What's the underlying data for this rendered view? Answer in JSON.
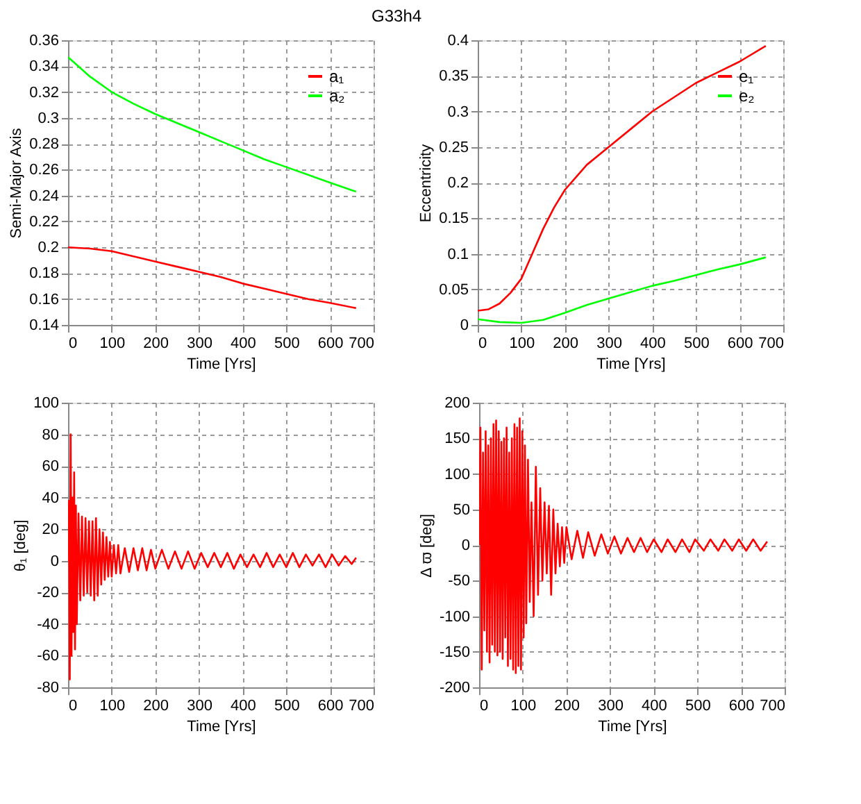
{
  "chart_data": [
    {
      "type": "line",
      "title": "G33h4",
      "xlabel": "Time [Yrs]",
      "ylabel": "Semi-Major Axis",
      "xlim": [
        0,
        700
      ],
      "xticks": [
        0,
        100,
        200,
        300,
        400,
        500,
        600,
        700
      ],
      "ylim": [
        0.14,
        0.36
      ],
      "yticks": [
        0.14,
        0.16,
        0.18,
        0.2,
        0.22,
        0.24,
        0.26,
        0.28,
        0.3,
        0.32,
        0.34,
        0.36
      ],
      "grid": true,
      "legend": "top right",
      "x": [
        0,
        50,
        100,
        150,
        200,
        250,
        300,
        350,
        400,
        450,
        500,
        550,
        600,
        660
      ],
      "series": [
        {
          "name": "a₁",
          "color": "#ff0000",
          "values": [
            0.2,
            0.199,
            0.197,
            0.193,
            0.189,
            0.185,
            0.181,
            0.177,
            0.172,
            0.168,
            0.164,
            0.16,
            0.157,
            0.153
          ]
        },
        {
          "name": "a₂",
          "color": "#00ff00",
          "values": [
            0.347,
            0.332,
            0.32,
            0.311,
            0.303,
            0.296,
            0.289,
            0.282,
            0.275,
            0.268,
            0.262,
            0.256,
            0.25,
            0.243
          ]
        }
      ]
    },
    {
      "type": "line",
      "xlabel": "Time [Yrs]",
      "ylabel": "Eccentricity",
      "xlim": [
        0,
        700
      ],
      "xticks": [
        0,
        100,
        200,
        300,
        400,
        500,
        600,
        700
      ],
      "ylim": [
        0,
        0.4
      ],
      "yticks": [
        0,
        0.05,
        0.1,
        0.15,
        0.2,
        0.25,
        0.3,
        0.35,
        0.4
      ],
      "grid": true,
      "legend": "top right",
      "series": [
        {
          "name": "e₁",
          "color": "#ff0000",
          "x": [
            0,
            25,
            50,
            75,
            100,
            125,
            150,
            175,
            200,
            250,
            300,
            350,
            400,
            450,
            500,
            550,
            600,
            660
          ],
          "values": [
            0.02,
            0.022,
            0.03,
            0.045,
            0.065,
            0.1,
            0.135,
            0.165,
            0.19,
            0.225,
            0.25,
            0.275,
            0.3,
            0.32,
            0.34,
            0.355,
            0.37,
            0.392
          ]
        },
        {
          "name": "e₂",
          "color": "#00ff00",
          "x": [
            0,
            50,
            100,
            150,
            200,
            250,
            300,
            350,
            400,
            450,
            500,
            550,
            600,
            660
          ],
          "values": [
            0.008,
            0.004,
            0.003,
            0.007,
            0.017,
            0.028,
            0.037,
            0.046,
            0.055,
            0.062,
            0.07,
            0.078,
            0.085,
            0.095
          ]
        }
      ]
    },
    {
      "type": "line",
      "xlabel": "Time [Yrs]",
      "ylabel": "θ₁   [deg]",
      "xlim": [
        0,
        700
      ],
      "xticks": [
        0,
        100,
        200,
        300,
        400,
        500,
        600,
        700
      ],
      "ylim": [
        -80,
        100
      ],
      "yticks": [
        -80,
        -60,
        -40,
        -20,
        0,
        20,
        40,
        60,
        80,
        100
      ],
      "grid": true,
      "series": [
        {
          "color": "#ff0000",
          "x": [
            0,
            2,
            4,
            6,
            8,
            10,
            12,
            14,
            16,
            18,
            20,
            24,
            28,
            32,
            36,
            40,
            44,
            48,
            52,
            56,
            60,
            64,
            68,
            72,
            76,
            80,
            84,
            88,
            92,
            96,
            100,
            105,
            110,
            115,
            120,
            130,
            140,
            150,
            160,
            170,
            180,
            190,
            200,
            215,
            230,
            245,
            260,
            275,
            290,
            305,
            320,
            335,
            350,
            365,
            380,
            395,
            410,
            425,
            440,
            455,
            470,
            485,
            500,
            515,
            530,
            545,
            560,
            575,
            590,
            605,
            620,
            635,
            650,
            660
          ],
          "values": [
            0,
            38,
            -75,
            80,
            -60,
            40,
            -45,
            56,
            -56,
            35,
            -40,
            30,
            -25,
            28,
            -22,
            27,
            -20,
            25,
            -22,
            25,
            -25,
            27,
            -22,
            20,
            -15,
            18,
            -12,
            15,
            -10,
            12,
            -10,
            10,
            -8,
            10,
            -8,
            8,
            -7,
            8,
            -6,
            8,
            -6,
            7,
            -5,
            7,
            -5,
            6,
            -5,
            6,
            -5,
            5,
            -4,
            5,
            -4,
            5,
            -5,
            4,
            -4,
            4,
            -4,
            5,
            -4,
            4,
            -4,
            5,
            -4,
            4,
            -3,
            4,
            -4,
            4,
            -3,
            3,
            -2,
            2
          ]
        }
      ]
    },
    {
      "type": "line",
      "xlabel": "Time [Yrs]",
      "ylabel": "Δ ϖ   [deg]",
      "xlim": [
        0,
        700
      ],
      "xticks": [
        0,
        100,
        200,
        300,
        400,
        500,
        600,
        700
      ],
      "ylim": [
        -200,
        200
      ],
      "yticks": [
        -200,
        -150,
        -100,
        -50,
        0,
        50,
        100,
        150,
        200
      ],
      "grid": true,
      "series": [
        {
          "color": "#ff0000",
          "x": [
            0,
            3,
            6,
            9,
            12,
            15,
            18,
            21,
            24,
            27,
            30,
            33,
            36,
            39,
            42,
            45,
            48,
            51,
            54,
            57,
            60,
            63,
            66,
            69,
            72,
            75,
            78,
            81,
            84,
            87,
            90,
            93,
            96,
            99,
            102,
            105,
            108,
            112,
            116,
            120,
            125,
            130,
            135,
            140,
            145,
            150,
            155,
            160,
            165,
            170,
            175,
            180,
            185,
            190,
            195,
            200,
            212,
            225,
            238,
            250,
            265,
            280,
            295,
            310,
            325,
            340,
            355,
            370,
            385,
            400,
            418,
            432,
            450,
            465,
            482,
            495,
            515,
            530,
            548,
            562,
            580,
            595,
            612,
            628,
            645,
            660
          ],
          "values": [
            0,
            165,
            -175,
            130,
            -120,
            160,
            -150,
            140,
            -165,
            150,
            -140,
            170,
            -150,
            175,
            -155,
            160,
            -150,
            145,
            -160,
            150,
            -130,
            165,
            -170,
            130,
            -160,
            150,
            -175,
            170,
            -180,
            165,
            -170,
            178,
            -175,
            160,
            -130,
            140,
            -110,
            120,
            -80,
            60,
            -100,
            110,
            -70,
            80,
            -50,
            60,
            -40,
            55,
            -70,
            50,
            -40,
            30,
            -30,
            25,
            -25,
            25,
            -20,
            20,
            -18,
            18,
            -15,
            15,
            -12,
            12,
            -12,
            10,
            -10,
            10,
            -10,
            8,
            -10,
            8,
            -10,
            8,
            -10,
            8,
            -8,
            8,
            -8,
            8,
            -8,
            8,
            -8,
            8,
            -8,
            5
          ]
        }
      ]
    }
  ]
}
